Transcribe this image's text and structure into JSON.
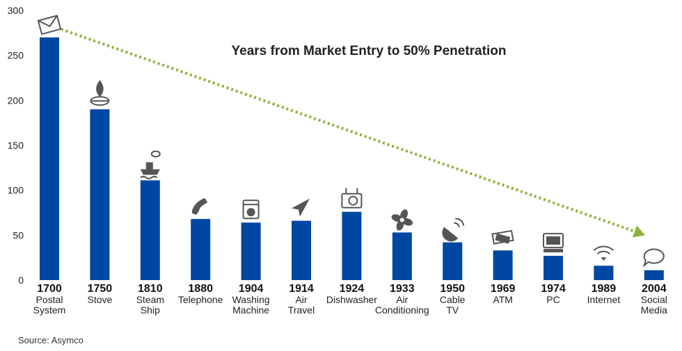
{
  "chart_data": {
    "type": "bar",
    "title": "Years from Market Entry to 50% Penetration",
    "source": "Source: Asymco",
    "ylim": [
      0,
      300
    ],
    "yticks": [
      0,
      50,
      100,
      150,
      200,
      250,
      300
    ],
    "categories": [
      {
        "year": "1700",
        "label": [
          "Postal",
          "System"
        ],
        "value": 270,
        "icon": "envelope-icon"
      },
      {
        "year": "1750",
        "label": [
          "Stove"
        ],
        "value": 190,
        "icon": "stove-flame-icon"
      },
      {
        "year": "1810",
        "label": [
          "Steam",
          "Ship"
        ],
        "value": 111,
        "icon": "steamship-icon"
      },
      {
        "year": "1880",
        "label": [
          "Telephone"
        ],
        "value": 68,
        "icon": "telephone-icon"
      },
      {
        "year": "1904",
        "label": [
          "Washing",
          "Machine"
        ],
        "value": 64,
        "icon": "washing-machine-icon"
      },
      {
        "year": "1914",
        "label": [
          "Air",
          "Travel"
        ],
        "value": 66,
        "icon": "paper-plane-icon"
      },
      {
        "year": "1924",
        "label": [
          "Dishwasher"
        ],
        "value": 76,
        "icon": "dishwasher-icon"
      },
      {
        "year": "1933",
        "label": [
          "Air",
          "Conditioning"
        ],
        "value": 53,
        "icon": "fan-icon"
      },
      {
        "year": "1950",
        "label": [
          "Cable",
          "TV"
        ],
        "value": 42,
        "icon": "satellite-dish-icon"
      },
      {
        "year": "1969",
        "label": [
          "ATM"
        ],
        "value": 33,
        "icon": "atm-cash-icon"
      },
      {
        "year": "1974",
        "label": [
          "PC"
        ],
        "value": 27,
        "icon": "computer-icon"
      },
      {
        "year": "1989",
        "label": [
          "Internet"
        ],
        "value": 16,
        "icon": "wifi-icon"
      },
      {
        "year": "2004",
        "label": [
          "Social",
          "Media"
        ],
        "value": 11,
        "icon": "speech-bubble-icon"
      }
    ],
    "bar_color": "#0047a3",
    "trend_color": "#8db33a",
    "grid": false
  }
}
